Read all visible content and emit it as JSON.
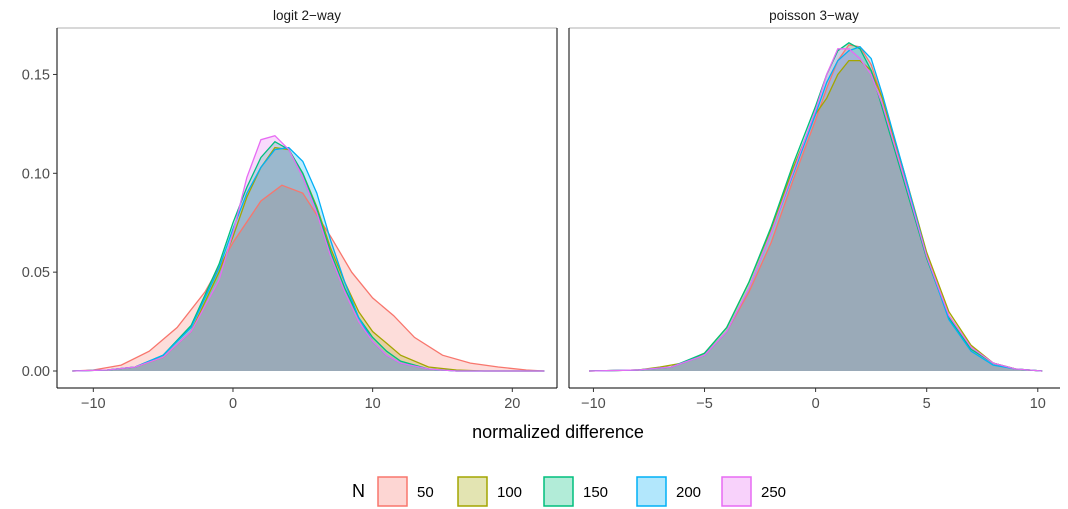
{
  "chart_data": {
    "type": "area",
    "xlabel": "normalized difference",
    "ylabel": "",
    "legend": {
      "title": "N",
      "position": "bottom"
    },
    "grid": false,
    "series_styles": [
      {
        "name": "50",
        "color": "#F8766D"
      },
      {
        "name": "100",
        "color": "#A3A500"
      },
      {
        "name": "150",
        "color": "#00BF7D"
      },
      {
        "name": "200",
        "color": "#00B0F6"
      },
      {
        "name": "250",
        "color": "#E76BF3"
      }
    ],
    "overlap_fill": "#9AAAB8",
    "panels": [
      {
        "title": "logit 2−way",
        "xlim": [
          -12.6,
          23.2
        ],
        "ylim": [
          -0.0086,
          0.1735
        ],
        "xticks": [
          -10,
          0,
          10,
          20
        ],
        "xtick_labels": [
          "−10",
          "0",
          "10",
          "20"
        ],
        "yticks": [
          0,
          0.05,
          0.1,
          0.15
        ],
        "ytick_labels": [
          "0.00",
          "0.05",
          "0.10",
          "0.15"
        ],
        "series": [
          {
            "name": "50",
            "x": [
              -11.5,
              -10,
              -8,
              -6,
              -4,
              -2,
              0,
              2,
              3.5,
              5,
              7,
              8.5,
              10,
              11.5,
              13,
              15,
              17,
              19,
              21,
              22.3
            ],
            "y": [
              0,
              0.0005,
              0.003,
              0.01,
              0.022,
              0.04,
              0.065,
              0.086,
              0.094,
              0.09,
              0.068,
              0.05,
              0.037,
              0.028,
              0.017,
              0.008,
              0.004,
              0.002,
              0.0005,
              0
            ]
          },
          {
            "name": "100",
            "x": [
              -11.5,
              -9,
              -7,
              -5,
              -3,
              -1,
              0,
              1,
              2,
              3,
              4,
              5,
              6,
              7,
              8,
              9,
              10,
              11,
              12,
              14,
              16,
              18,
              22.3
            ],
            "y": [
              0,
              0.0005,
              0.002,
              0.007,
              0.02,
              0.05,
              0.068,
              0.088,
              0.103,
              0.113,
              0.112,
              0.1,
              0.083,
              0.062,
              0.045,
              0.03,
              0.02,
              0.014,
              0.008,
              0.002,
              0.0005,
              0,
              0
            ]
          },
          {
            "name": "150",
            "x": [
              -11.5,
              -9,
              -7,
              -5,
              -3,
              -1,
              0,
              1,
              2,
              3,
              4,
              5,
              6,
              7,
              8,
              9,
              10,
              11,
              12,
              14,
              16,
              22.3
            ],
            "y": [
              0,
              0.0005,
              0.002,
              0.008,
              0.023,
              0.054,
              0.075,
              0.093,
              0.108,
              0.116,
              0.112,
              0.1,
              0.082,
              0.06,
              0.042,
              0.027,
              0.017,
              0.01,
              0.005,
              0.001,
              0,
              0
            ]
          },
          {
            "name": "200",
            "x": [
              -11.5,
              -9,
              -7,
              -5,
              -3,
              -1,
              0,
              1,
              2,
              3,
              4,
              5,
              6,
              7,
              8,
              9,
              10,
              11,
              12,
              14,
              16,
              22.3
            ],
            "y": [
              0,
              0.0005,
              0.002,
              0.008,
              0.022,
              0.052,
              0.072,
              0.09,
              0.103,
              0.112,
              0.113,
              0.106,
              0.09,
              0.066,
              0.045,
              0.027,
              0.015,
              0.008,
              0.004,
              0.001,
              0,
              0
            ]
          },
          {
            "name": "250",
            "x": [
              -11.5,
              -9,
              -7,
              -5,
              -3,
              -1,
              0,
              1,
              2,
              3,
              4,
              5,
              6,
              7,
              8,
              9,
              10,
              11,
              12,
              14,
              16,
              22.3
            ],
            "y": [
              0,
              0.0005,
              0.002,
              0.007,
              0.02,
              0.046,
              0.07,
              0.098,
              0.117,
              0.119,
              0.112,
              0.098,
              0.08,
              0.058,
              0.04,
              0.025,
              0.015,
              0.008,
              0.004,
              0.001,
              0,
              0
            ]
          }
        ]
      },
      {
        "title": "poisson 3−way",
        "xlim": [
          -11.1,
          11.0
        ],
        "ylim": [
          -0.0086,
          0.1735
        ],
        "xticks": [
          -10,
          -5,
          0,
          5,
          10
        ],
        "xtick_labels": [
          "−10",
          "−5",
          "0",
          "5",
          "10"
        ],
        "yticks": [
          0,
          0.05,
          0.1,
          0.15
        ],
        "ytick_labels": [
          "0.00",
          "0.05",
          "0.10",
          "0.15"
        ],
        "series": [
          {
            "name": "50",
            "x": [
              -10.2,
              -8,
              -6.5,
              -5,
              -4,
              -3,
              -2,
              -1,
              0,
              0.5,
              1,
              1.5,
              2,
              2.5,
              3,
              4,
              5,
              6,
              7,
              8,
              9,
              10.2
            ],
            "y": [
              0,
              0.0005,
              0.002,
              0.008,
              0.02,
              0.04,
              0.065,
              0.097,
              0.127,
              0.143,
              0.157,
              0.165,
              0.164,
              0.155,
              0.138,
              0.098,
              0.058,
              0.028,
              0.012,
              0.004,
              0.001,
              0
            ]
          },
          {
            "name": "100",
            "x": [
              -10.2,
              -8,
              -7,
              -6,
              -5,
              -4,
              -3,
              -2,
              -1,
              0,
              0.5,
              1,
              1.5,
              2,
              2.5,
              3,
              4,
              5,
              6,
              7,
              8,
              9,
              10.2
            ],
            "y": [
              0,
              0.0005,
              0.002,
              0.004,
              0.009,
              0.022,
              0.045,
              0.072,
              0.103,
              0.13,
              0.138,
              0.15,
              0.157,
              0.157,
              0.152,
              0.138,
              0.1,
              0.06,
              0.03,
              0.013,
              0.004,
              0.001,
              0
            ]
          },
          {
            "name": "150",
            "x": [
              -10.2,
              -8,
              -6.5,
              -5,
              -4,
              -3,
              -2,
              -1,
              0,
              0.5,
              1,
              1.5,
              2,
              2.5,
              3,
              4,
              5,
              6,
              7,
              8,
              9,
              10.2
            ],
            "y": [
              0,
              0.0005,
              0.002,
              0.009,
              0.022,
              0.045,
              0.073,
              0.105,
              0.134,
              0.15,
              0.162,
              0.166,
              0.163,
              0.152,
              0.133,
              0.095,
              0.057,
              0.027,
              0.011,
              0.004,
              0.001,
              0
            ]
          },
          {
            "name": "200",
            "x": [
              -10.2,
              -8,
              -6.5,
              -5,
              -4,
              -3,
              -2,
              -1,
              0,
              0.5,
              1,
              1.5,
              2,
              2.5,
              3,
              4,
              5,
              6,
              7,
              8,
              9,
              10.2
            ],
            "y": [
              0,
              0.0005,
              0.002,
              0.008,
              0.02,
              0.042,
              0.07,
              0.1,
              0.13,
              0.146,
              0.157,
              0.162,
              0.164,
              0.158,
              0.14,
              0.1,
              0.058,
              0.026,
              0.01,
              0.003,
              0.001,
              0
            ]
          },
          {
            "name": "250",
            "x": [
              -10.2,
              -8,
              -6.5,
              -5,
              -4,
              -3,
              -2,
              -1,
              0,
              0.5,
              1,
              1.5,
              2,
              2.5,
              3,
              4,
              5,
              6,
              7,
              8,
              9,
              10.2
            ],
            "y": [
              0,
              0.0005,
              0.002,
              0.008,
              0.02,
              0.042,
              0.07,
              0.101,
              0.132,
              0.15,
              0.163,
              0.163,
              0.158,
              0.15,
              0.135,
              0.097,
              0.058,
              0.028,
              0.012,
              0.004,
              0.001,
              0
            ]
          }
        ]
      }
    ]
  }
}
